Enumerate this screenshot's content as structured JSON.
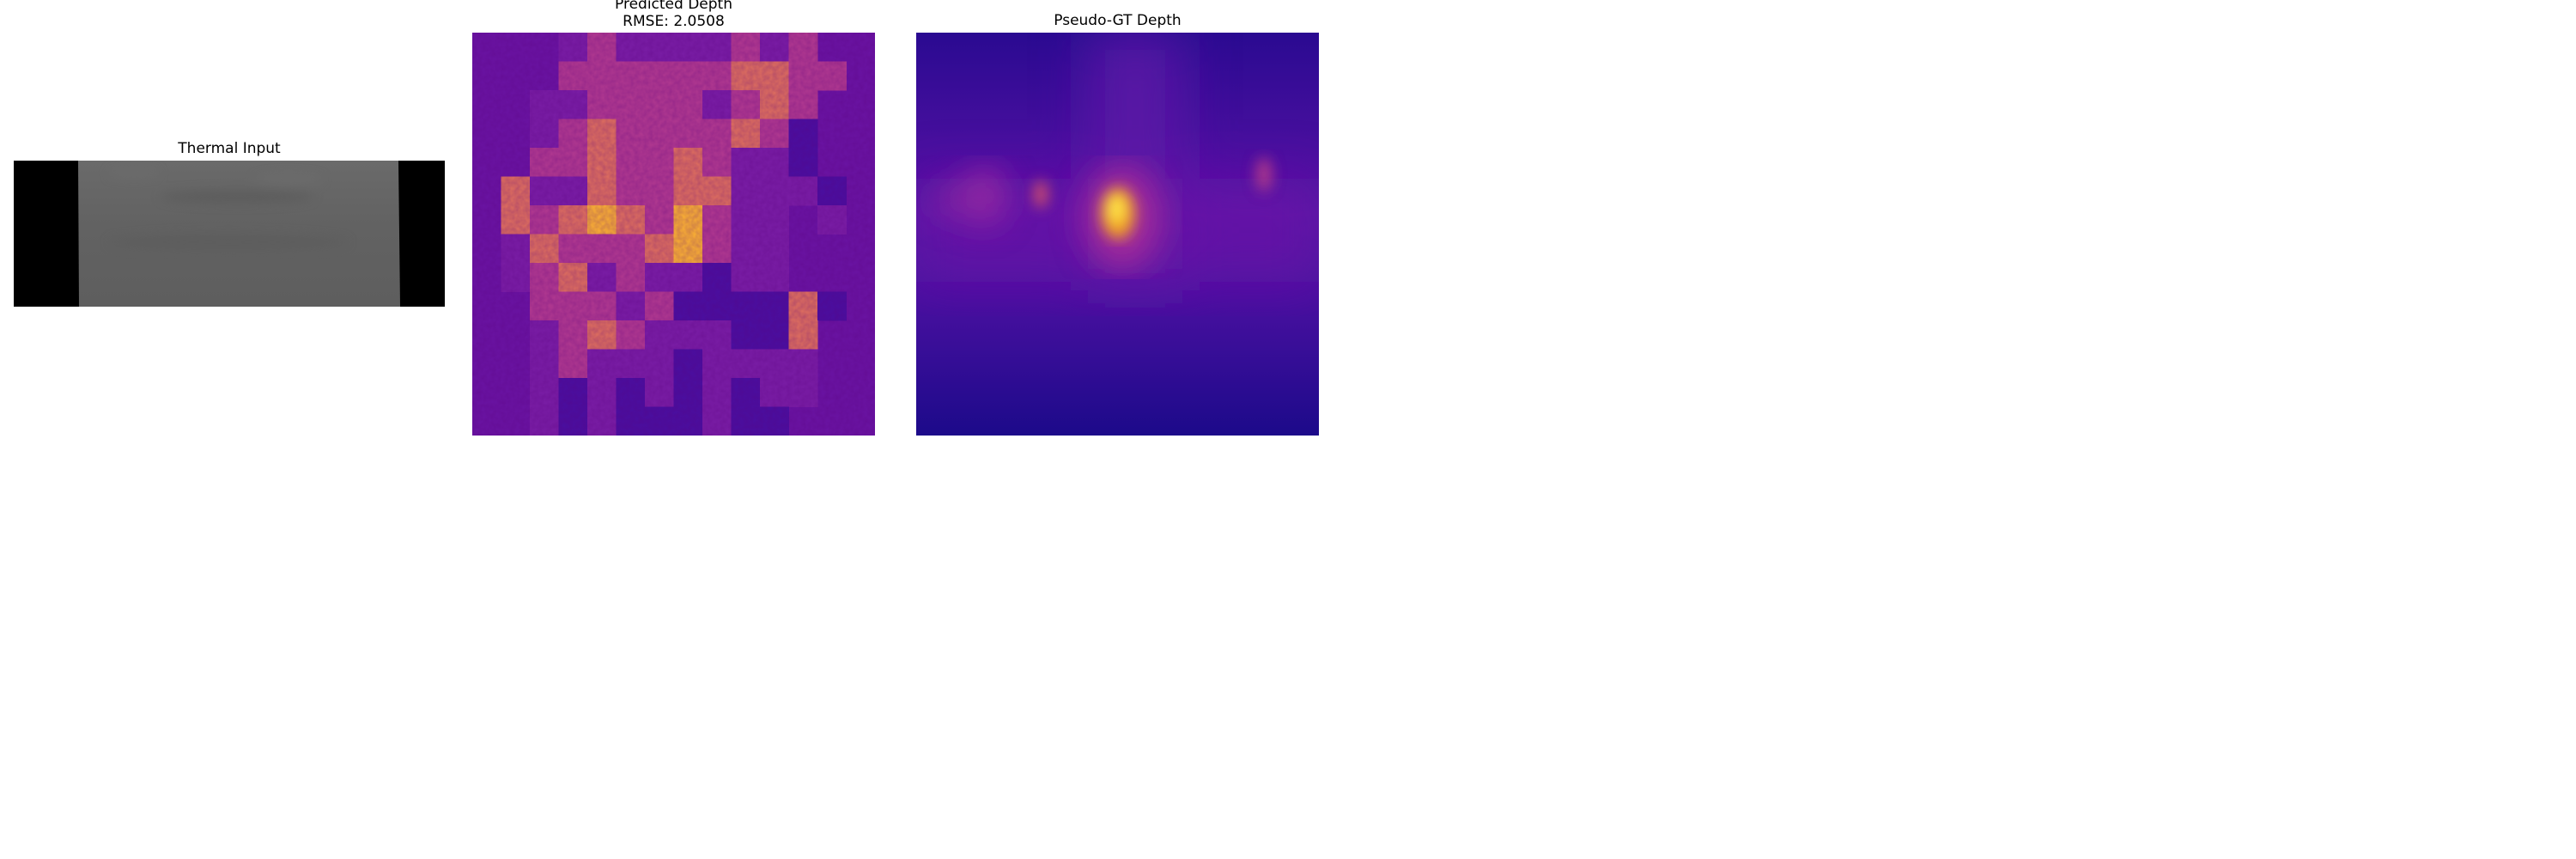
{
  "panels": {
    "thermal": {
      "title": "Thermal Input",
      "colormap": "gray"
    },
    "predicted": {
      "title_line1": "Predicted Depth",
      "title_line2": "RMSE: 2.0508",
      "colormap": "plasma"
    },
    "pseudo_gt": {
      "title": "Pseudo-GT Depth",
      "colormap": "plasma"
    }
  }
}
